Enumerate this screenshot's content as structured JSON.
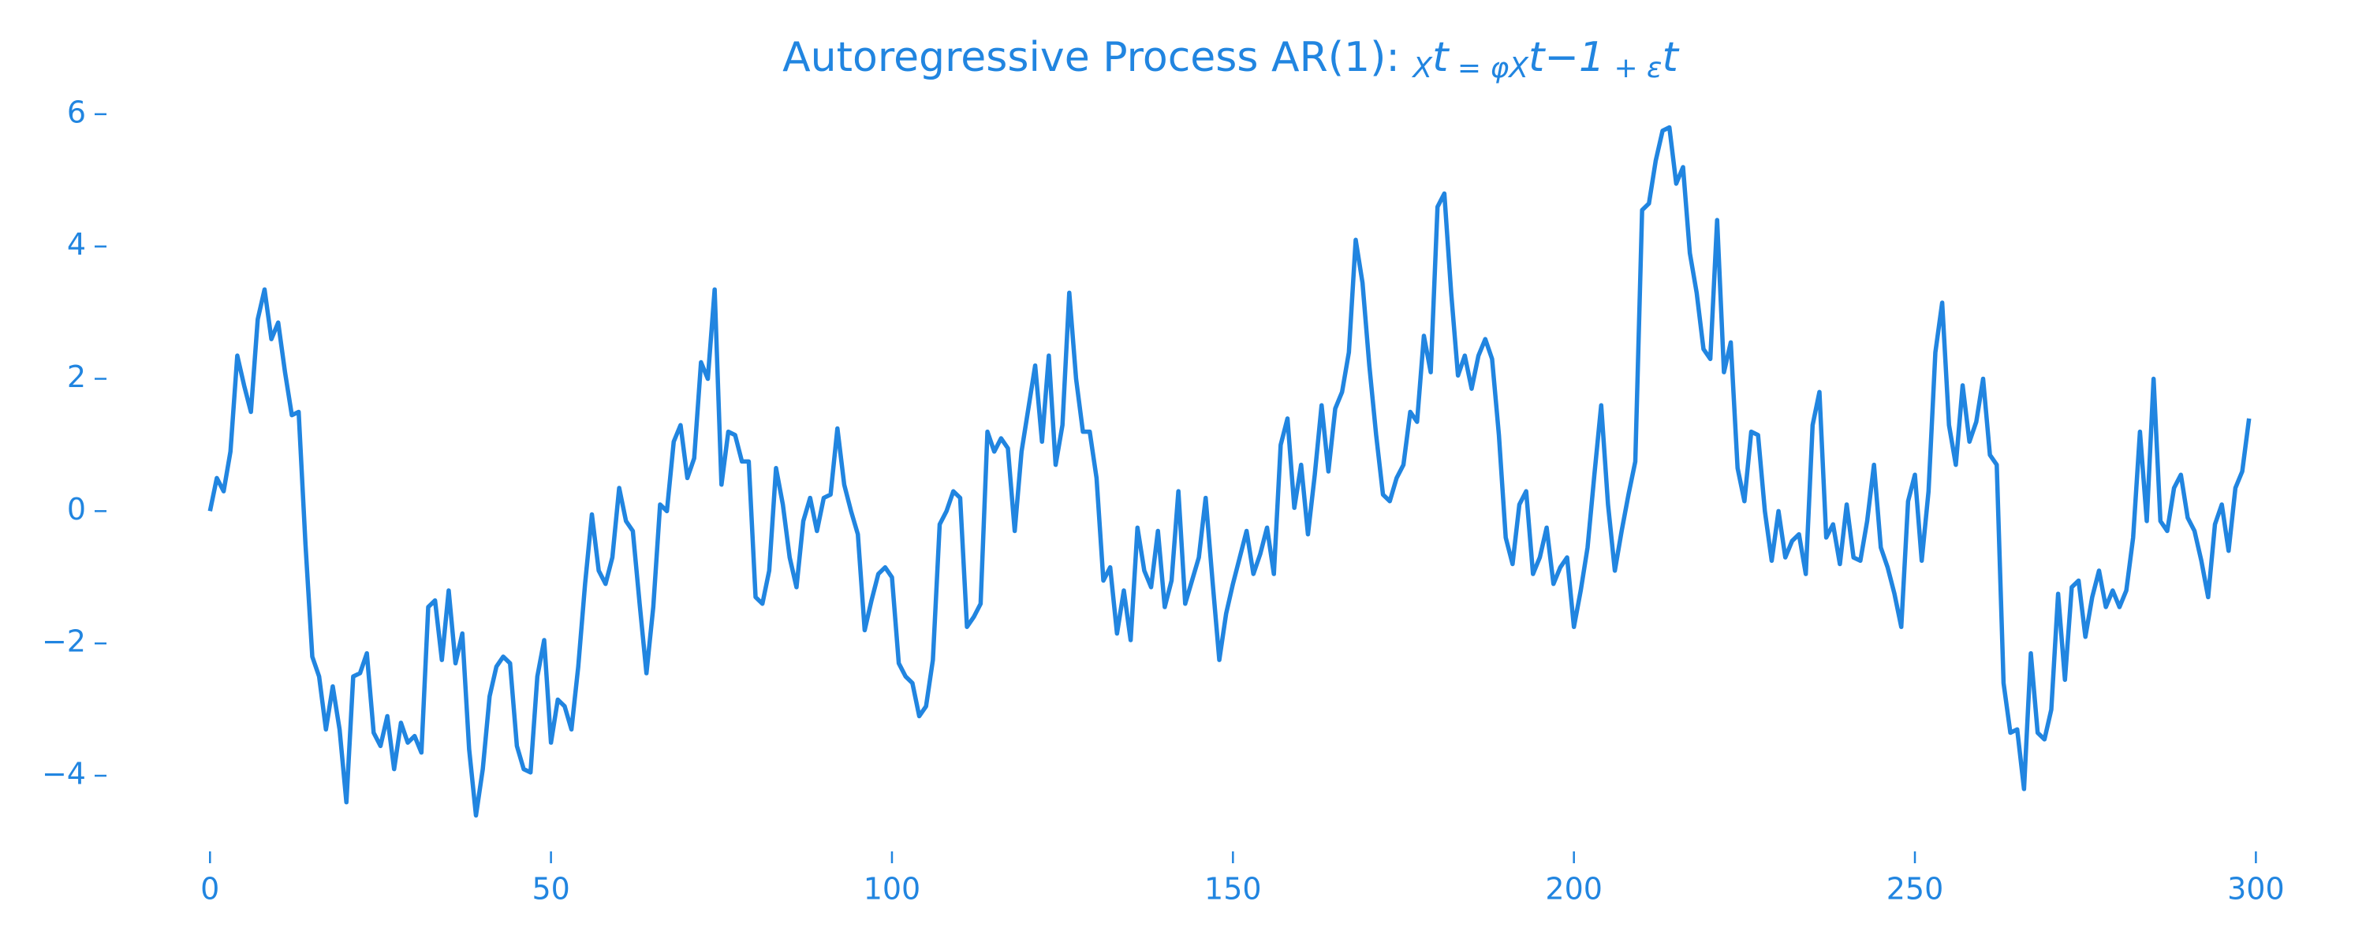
{
  "chart_data": {
    "type": "line",
    "title": [
      "Autoregressive Process AR(1): ",
      "X",
      "t",
      " = φX",
      "t−1",
      " + ε",
      "t"
    ],
    "x": [
      0,
      1,
      2,
      3,
      4,
      5,
      6,
      7,
      8,
      9,
      10,
      11,
      12,
      13,
      14,
      15,
      16,
      17,
      18,
      19,
      20,
      21,
      22,
      23,
      24,
      25,
      26,
      27,
      28,
      29,
      30,
      31,
      32,
      33,
      34,
      35,
      36,
      37,
      38,
      39,
      40,
      41,
      42,
      43,
      44,
      45,
      46,
      47,
      48,
      49,
      50,
      51,
      52,
      53,
      54,
      55,
      56,
      57,
      58,
      59,
      60,
      61,
      62,
      63,
      64,
      65,
      66,
      67,
      68,
      69,
      70,
      71,
      72,
      73,
      74,
      75,
      76,
      77,
      78,
      79,
      80,
      81,
      82,
      83,
      84,
      85,
      86,
      87,
      88,
      89,
      90,
      91,
      92,
      93,
      94,
      95,
      96,
      97,
      98,
      99,
      100,
      101,
      102,
      103,
      104,
      105,
      106,
      107,
      108,
      109,
      110,
      111,
      112,
      113,
      114,
      115,
      116,
      117,
      118,
      119,
      120,
      121,
      122,
      123,
      124,
      125,
      126,
      127,
      128,
      129,
      130,
      131,
      132,
      133,
      134,
      135,
      136,
      137,
      138,
      139,
      140,
      141,
      142,
      143,
      144,
      145,
      146,
      147,
      148,
      149,
      150,
      151,
      152,
      153,
      154,
      155,
      156,
      157,
      158,
      159,
      160,
      161,
      162,
      163,
      164,
      165,
      166,
      167,
      168,
      169,
      170,
      171,
      172,
      173,
      174,
      175,
      176,
      177,
      178,
      179,
      180,
      181,
      182,
      183,
      184,
      185,
      186,
      187,
      188,
      189,
      190,
      191,
      192,
      193,
      194,
      195,
      196,
      197,
      198,
      199,
      200,
      201,
      202,
      203,
      204,
      205,
      206,
      207,
      208,
      209,
      210,
      211,
      212,
      213,
      214,
      215,
      216,
      217,
      218,
      219,
      220,
      221,
      222,
      223,
      224,
      225,
      226,
      227,
      228,
      229,
      230,
      231,
      232,
      233,
      234,
      235,
      236,
      237,
      238,
      239,
      240,
      241,
      242,
      243,
      244,
      245,
      246,
      247,
      248,
      249,
      250,
      251,
      252,
      253,
      254,
      255,
      256,
      257,
      258,
      259,
      260,
      261,
      262,
      263,
      264,
      265,
      266,
      267,
      268,
      269,
      270,
      271,
      272,
      273,
      274,
      275,
      276,
      277,
      278,
      279,
      280,
      281,
      282,
      283,
      284,
      285,
      286,
      287,
      288,
      289,
      290,
      291,
      292,
      293,
      294,
      295,
      296,
      297,
      298,
      299
    ],
    "values": [
      0,
      0.5,
      0.3,
      0.9,
      2.35,
      1.9,
      1.5,
      2.9,
      3.35,
      2.6,
      2.85,
      2.1,
      1.45,
      1.5,
      -0.5,
      -2.2,
      -2.5,
      -3.3,
      -2.65,
      -3.3,
      -4.4,
      -2.5,
      -2.45,
      -2.15,
      -3.35,
      -3.55,
      -3.1,
      -3.9,
      -3.2,
      -3.5,
      -3.4,
      -3.65,
      -1.45,
      -1.35,
      -2.25,
      -1.2,
      -2.3,
      -1.85,
      -3.6,
      -4.6,
      -3.9,
      -2.8,
      -2.35,
      -2.2,
      -2.3,
      -3.55,
      -3.9,
      -3.95,
      -2.5,
      -1.95,
      -3.5,
      -2.85,
      -2.95,
      -3.3,
      -2.35,
      -1.1,
      -0.05,
      -0.9,
      -1.1,
      -0.7,
      0.35,
      -0.15,
      -0.3,
      -1.4,
      -2.45,
      -1.45,
      0.1,
      0.0,
      1.05,
      1.3,
      0.5,
      0.8,
      2.25,
      2.0,
      3.35,
      0.4,
      1.2,
      1.15,
      0.75,
      0.75,
      -1.3,
      -1.4,
      -0.9,
      0.65,
      0.1,
      -0.7,
      -1.15,
      -0.15,
      0.2,
      -0.3,
      0.2,
      0.25,
      1.25,
      0.4,
      0.0,
      -0.35,
      -1.8,
      -1.35,
      -0.95,
      -0.85,
      -1.0,
      -2.3,
      -2.5,
      -2.6,
      -3.1,
      -2.95,
      -2.25,
      -0.2,
      0.0,
      0.3,
      0.2,
      -1.75,
      -1.6,
      -1.4,
      1.2,
      0.9,
      1.1,
      0.95,
      -0.3,
      0.9,
      1.55,
      2.2,
      1.05,
      2.35,
      0.7,
      1.3,
      3.3,
      2.0,
      1.2,
      1.2,
      0.5,
      -1.05,
      -0.85,
      -1.85,
      -1.2,
      -1.95,
      -0.25,
      -0.9,
      -1.15,
      -0.3,
      -1.45,
      -1.05,
      0.3,
      -1.4,
      -1.05,
      -0.7,
      0.2,
      -1.05,
      -2.25,
      -1.55,
      -1.1,
      -0.7,
      -0.3,
      -0.95,
      -0.65,
      -0.25,
      -0.95,
      1.0,
      1.4,
      0.05,
      0.7,
      -0.35,
      0.55,
      1.6,
      0.6,
      1.55,
      1.8,
      2.4,
      4.1,
      3.45,
      2.2,
      1.15,
      0.25,
      0.15,
      0.5,
      0.7,
      1.5,
      1.35,
      2.65,
      2.1,
      4.6,
      4.8,
      3.3,
      2.05,
      2.35,
      1.85,
      2.35,
      2.6,
      2.3,
      1.15,
      -0.4,
      -0.8,
      0.1,
      0.3,
      -0.95,
      -0.7,
      -0.25,
      -1.1,
      -0.85,
      -0.7,
      -1.75,
      -1.2,
      -0.55,
      0.55,
      1.6,
      0.1,
      -0.9,
      -0.3,
      0.25,
      0.75,
      4.55,
      4.65,
      5.3,
      5.75,
      5.8,
      4.95,
      5.2,
      3.9,
      3.3,
      2.45,
      2.3,
      4.4,
      2.1,
      2.55,
      0.65,
      0.15,
      1.2,
      1.15,
      0.0,
      -0.75,
      0.0,
      -0.7,
      -0.45,
      -0.35,
      -0.95,
      1.3,
      1.8,
      -0.4,
      -0.2,
      -0.8,
      0.1,
      -0.7,
      -0.75,
      -0.15,
      0.7,
      -0.55,
      -0.85,
      -1.25,
      -1.75,
      0.15,
      0.55,
      -0.75,
      0.3,
      2.4,
      3.15,
      1.3,
      0.7,
      1.9,
      1.05,
      1.35,
      2.0,
      0.85,
      0.7,
      -2.6,
      -3.35,
      -3.3,
      -4.2,
      -2.15,
      -3.35,
      -3.45,
      -3.0,
      -1.25,
      -2.55,
      -1.15,
      -1.05,
      -1.9,
      -1.3,
      -0.9,
      -1.45,
      -1.2,
      -1.45,
      -1.2,
      -0.4,
      1.2,
      -0.15,
      2.0,
      -0.15,
      -0.3,
      0.35,
      0.55,
      -0.1,
      -0.3,
      -0.75,
      -1.3,
      -0.2,
      0.1,
      -0.6,
      0.35,
      0.6,
      1.4
    ],
    "color": "#2185e0",
    "xlim": [
      -14.95,
      313.95
    ],
    "xticks": [
      0,
      50,
      100,
      150,
      200,
      250,
      300
    ],
    "ylim": [
      -5.12,
      6.32
    ],
    "yticks": [
      {
        "value": -4,
        "label": "−4"
      },
      {
        "value": -2,
        "label": "−2"
      },
      0,
      2,
      4,
      6
    ],
    "grid": false
  }
}
